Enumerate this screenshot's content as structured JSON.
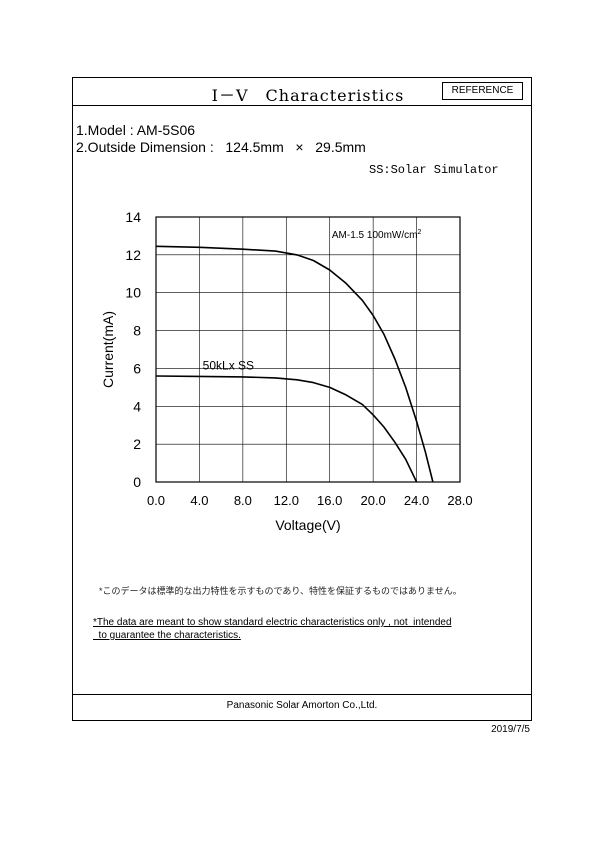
{
  "header": {
    "title": "Ⅰ－Ⅴ　Characteristics",
    "reference_label": "REFERENCE"
  },
  "specs": {
    "model": "1.Model : AM-5S06",
    "dimension": "2.Outside Dimension :   124.5mm   ×   29.5mm"
  },
  "ss_note": "SS:Solar Simulator",
  "chart_data": {
    "type": "line",
    "xlabel": "Voltage(V)",
    "ylabel": "Current(mA)",
    "xlim": [
      0,
      28
    ],
    "ylim": [
      0,
      14
    ],
    "x_ticks": [
      "0.0",
      "4.0",
      "8.0",
      "12.0",
      "16.0",
      "20.0",
      "24.0",
      "28.0"
    ],
    "y_ticks": [
      "0",
      "2",
      "4",
      "6",
      "8",
      "10",
      "12",
      "14"
    ],
    "grid": true,
    "series": [
      {
        "name": "AM-1.5 100mW/cm",
        "name_superscript": "2",
        "x": [
          0,
          4,
          8,
          11,
          13,
          14.5,
          16,
          17.5,
          19,
          20,
          21,
          22,
          23,
          24,
          24.8,
          25.5
        ],
        "y": [
          12.45,
          12.4,
          12.3,
          12.2,
          12.0,
          11.7,
          11.2,
          10.5,
          9.6,
          8.8,
          7.8,
          6.5,
          5.0,
          3.2,
          1.6,
          0
        ]
      },
      {
        "name": "50kLx  SS",
        "x": [
          0,
          4,
          8,
          11,
          13,
          14.5,
          16,
          17.5,
          19,
          20,
          21,
          22,
          23,
          24
        ],
        "y": [
          5.6,
          5.58,
          5.55,
          5.5,
          5.4,
          5.25,
          5.0,
          4.6,
          4.1,
          3.55,
          2.9,
          2.1,
          1.2,
          0
        ]
      }
    ]
  },
  "notes": {
    "jp": "*このデータは標準的な出力特性を示すものであり、特性を保証するものではありません。",
    "en_line1": "*The data are meant to show standard electric characteristics only , not  intended",
    "en_line2": "  to guarantee the characteristics."
  },
  "footer": "Panasonic Solar Amorton Co.,Ltd.",
  "date": "2019/7/5"
}
